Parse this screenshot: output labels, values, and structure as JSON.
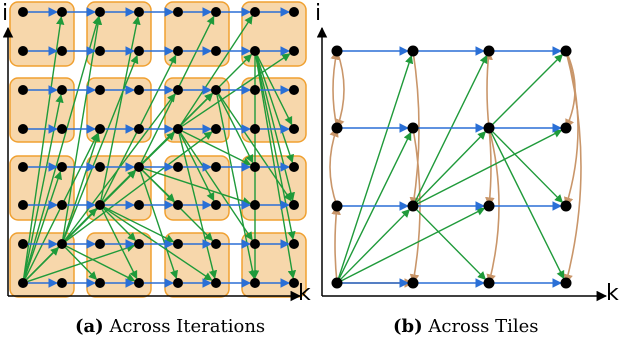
{
  "panel_a": {
    "axis_y": "i",
    "axis_x": "k",
    "caption_tag": "(a)",
    "caption_text": "Across Iterations"
  },
  "panel_b": {
    "axis_y": "i",
    "axis_x": "k",
    "caption_tag": "(b)",
    "caption_text": "Across Tiles"
  },
  "colors": {
    "tile_fill": "#f7d7ab",
    "tile_border": "#f0a030",
    "blue_arrow": "#2a6fd6",
    "green_arrow": "#1f9a3a",
    "tan_arrow": "#c9966a",
    "node": "#000000"
  }
}
